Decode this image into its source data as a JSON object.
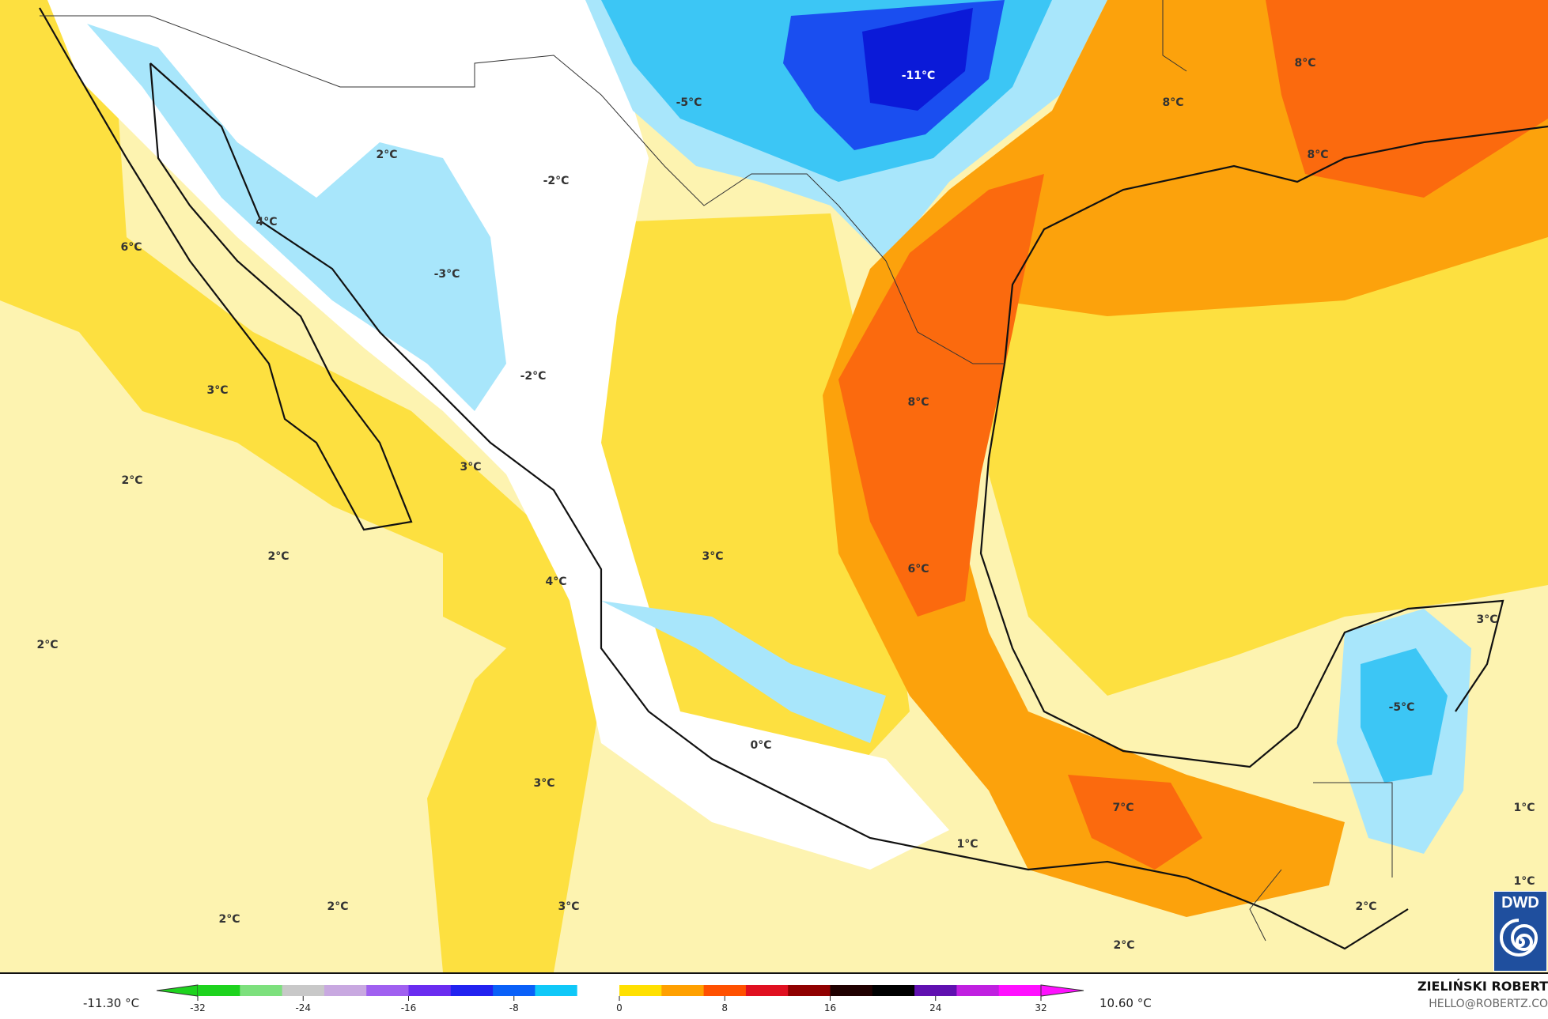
{
  "map": {
    "labels": [
      "-11°C",
      "-5°C",
      "8°C",
      "8°C",
      "8°C",
      "2°C",
      "-2°C",
      "4°C",
      "6°C",
      "-3°C",
      "-2°C",
      "3°C",
      "8°C",
      "2°C",
      "3°C",
      "2°C",
      "3°C",
      "6°C",
      "4°C",
      "2°C",
      "3°C",
      "-5°C",
      "0°C",
      "3°C",
      "7°C",
      "1°C",
      "1°C",
      "1°C",
      "2°C",
      "2°C",
      "2°C",
      "3°C",
      "2°C"
    ],
    "colors": {
      "ocean_pale": "#fdf3b0",
      "yellow": "#fde040",
      "orange": "#fca20c",
      "red_orange": "#fb6a0e",
      "light_blue": "#a8e6fb",
      "cyan": "#3cc6f5",
      "blue": "#1a4ef0",
      "deep_blue": "#0b1ad8",
      "white": "#ffffff"
    }
  },
  "legend": {
    "min_label": "-11.30 °C",
    "max_label": "10.60 °C",
    "ticks": [
      "-32",
      "-24",
      "-16",
      "-8",
      "0",
      "8",
      "16",
      "24",
      "32"
    ],
    "colorscale": [
      "#1ed31e",
      "#7de07d",
      "#c8c8c8",
      "#c8a8e0",
      "#a060f0",
      "#6a2cf0",
      "#2222f0",
      "#0a60f8",
      "#10c8f8",
      "#ffffff",
      "#ffe000",
      "#ffa000",
      "#ff5000",
      "#e01020",
      "#900000",
      "#200000",
      "#000000",
      "#6010b0",
      "#c020e0",
      "#ff10ff"
    ]
  },
  "credit": {
    "author": "ZIELIŃSKI ROBERT",
    "email": "HELLO@ROBERTZ.CO",
    "logo_text": "DWD"
  }
}
